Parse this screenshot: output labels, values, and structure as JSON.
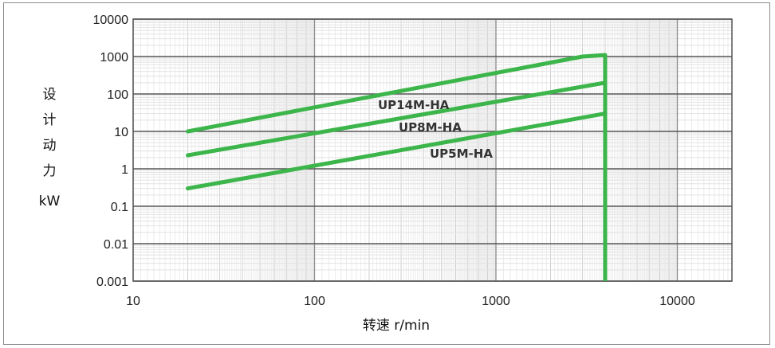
{
  "chart_data": {
    "type": "line",
    "title": "",
    "xlabel": "转速  r/min",
    "ylabel": [
      "设",
      "计",
      "动",
      "力",
      "kW"
    ],
    "x_scale": "log",
    "y_scale": "log",
    "xlim": [
      10,
      20000
    ],
    "ylim": [
      0.001,
      10000
    ],
    "x_ticks": [
      "10",
      "100",
      "1000",
      "10000"
    ],
    "y_ticks": [
      "10000",
      "1000",
      "100",
      "10",
      "1",
      "0.1",
      "0.01",
      "0.001"
    ],
    "grid": true,
    "line_color": "#3cb54a",
    "series": [
      {
        "name": "UP14M-HA",
        "x": [
          20,
          3000,
          4000
        ],
        "y": [
          10,
          1000,
          1100
        ]
      },
      {
        "name": "UP8M-HA",
        "x": [
          20,
          4000
        ],
        "y": [
          2.3,
          200
        ]
      },
      {
        "name": "UP5M-HA",
        "x": [
          20,
          4000
        ],
        "y": [
          0.3,
          30
        ]
      }
    ],
    "limit_line": {
      "x": 4000,
      "y": [
        0.001,
        1100
      ]
    }
  }
}
